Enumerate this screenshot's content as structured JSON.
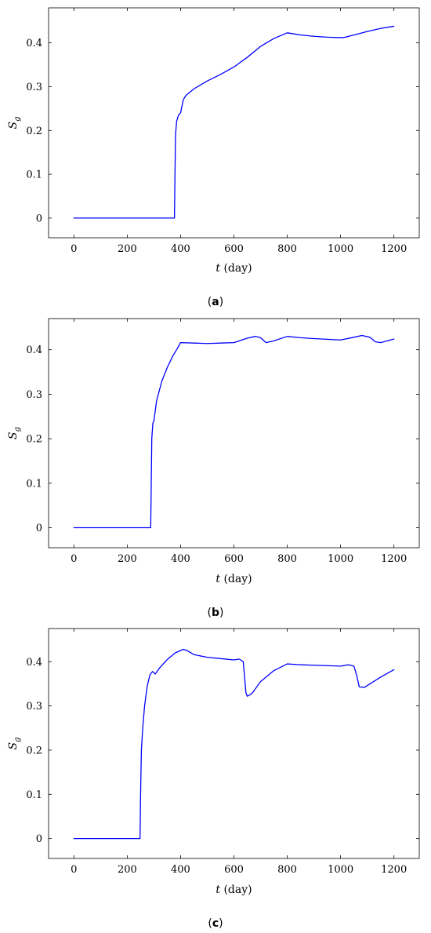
{
  "colors": {
    "line": "#0000ff",
    "axis": "#000000"
  },
  "chart_data": [
    {
      "type": "line",
      "caption_letter": "a",
      "xlabel_var": "t",
      "xlabel_unit": "(day)",
      "ylabel_main": "S",
      "ylabel_sub": "g",
      "xlim": [
        -95,
        1295
      ],
      "ylim": [
        -0.045,
        0.48
      ],
      "xticks": [
        0,
        200,
        400,
        600,
        800,
        1000,
        1200
      ],
      "xtick_labels": [
        "0",
        "200",
        "400",
        "600",
        "800",
        "1000",
        "1200"
      ],
      "yticks": [
        0,
        0.1,
        0.2,
        0.3,
        0.4
      ],
      "ytick_labels": [
        "0",
        "0.1",
        "0.2",
        "0.3",
        "0.4"
      ],
      "grid": false,
      "series": [
        {
          "x": [
            0,
            100,
            200,
            300,
            377,
            379,
            381,
            385,
            392,
            400,
            410,
            420,
            450,
            500,
            550,
            600,
            650,
            700,
            750,
            800,
            850,
            900,
            950,
            1000,
            1010,
            1050,
            1100,
            1150,
            1200
          ],
          "y": [
            0,
            0,
            0,
            0,
            0,
            0.1,
            0.19,
            0.22,
            0.235,
            0.24,
            0.27,
            0.28,
            0.295,
            0.313,
            0.328,
            0.345,
            0.367,
            0.392,
            0.41,
            0.423,
            0.418,
            0.415,
            0.413,
            0.412,
            0.412,
            0.418,
            0.426,
            0.433,
            0.438
          ]
        }
      ]
    },
    {
      "type": "line",
      "caption_letter": "b",
      "xlabel_var": "t",
      "xlabel_unit": "(day)",
      "ylabel_main": "S",
      "ylabel_sub": "g",
      "xlim": [
        -95,
        1295
      ],
      "ylim": [
        -0.045,
        0.47
      ],
      "xticks": [
        0,
        200,
        400,
        600,
        800,
        1000,
        1200
      ],
      "xtick_labels": [
        "0",
        "200",
        "400",
        "600",
        "800",
        "1000",
        "1200"
      ],
      "yticks": [
        0,
        0.1,
        0.2,
        0.3,
        0.4
      ],
      "ytick_labels": [
        "0",
        "0.1",
        "0.2",
        "0.3",
        "0.4"
      ],
      "grid": false,
      "series": [
        {
          "x": [
            0,
            100,
            200,
            288,
            290,
            292,
            296,
            300,
            310,
            330,
            350,
            370,
            390,
            400,
            450,
            500,
            550,
            600,
            650,
            680,
            700,
            720,
            750,
            800,
            850,
            900,
            1000,
            1050,
            1080,
            1110,
            1130,
            1150,
            1200
          ],
          "y": [
            0,
            0,
            0,
            0,
            0.1,
            0.2,
            0.235,
            0.24,
            0.285,
            0.33,
            0.36,
            0.385,
            0.405,
            0.416,
            0.415,
            0.414,
            0.415,
            0.416,
            0.426,
            0.43,
            0.427,
            0.416,
            0.42,
            0.43,
            0.427,
            0.425,
            0.422,
            0.428,
            0.432,
            0.428,
            0.418,
            0.416,
            0.424
          ]
        }
      ]
    },
    {
      "type": "line",
      "caption_letter": "c",
      "xlabel_var": "t",
      "xlabel_unit": "(day)",
      "ylabel_main": "S",
      "ylabel_sub": "g",
      "xlim": [
        -95,
        1295
      ],
      "ylim": [
        -0.045,
        0.475
      ],
      "xticks": [
        0,
        200,
        400,
        600,
        800,
        1000,
        1200
      ],
      "xtick_labels": [
        "0",
        "200",
        "400",
        "600",
        "800",
        "1000",
        "1200"
      ],
      "yticks": [
        0,
        0.1,
        0.2,
        0.3,
        0.4
      ],
      "ytick_labels": [
        "0",
        "0.1",
        "0.2",
        "0.3",
        "0.4"
      ],
      "grid": false,
      "series": [
        {
          "x": [
            0,
            100,
            200,
            248,
            250,
            253,
            258,
            265,
            275,
            285,
            295,
            305,
            320,
            350,
            380,
            410,
            425,
            450,
            500,
            550,
            600,
            620,
            635,
            645,
            650,
            660,
            670,
            700,
            750,
            800,
            850,
            900,
            1000,
            1030,
            1050,
            1060,
            1070,
            1090,
            1100,
            1150,
            1200
          ],
          "y": [
            0,
            0,
            0,
            0,
            0.1,
            0.2,
            0.25,
            0.3,
            0.345,
            0.37,
            0.378,
            0.372,
            0.385,
            0.405,
            0.42,
            0.428,
            0.425,
            0.416,
            0.41,
            0.407,
            0.404,
            0.406,
            0.4,
            0.33,
            0.322,
            0.325,
            0.33,
            0.355,
            0.38,
            0.395,
            0.393,
            0.392,
            0.39,
            0.393,
            0.39,
            0.37,
            0.343,
            0.342,
            0.346,
            0.365,
            0.382
          ]
        }
      ]
    }
  ]
}
